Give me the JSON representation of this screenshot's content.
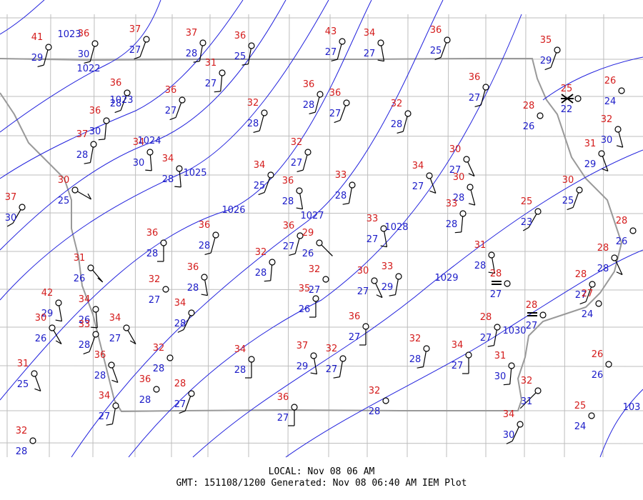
{
  "stations": [
    {
      "temp": 41,
      "dew": 29
    },
    {
      "temp": 36,
      "dew": 30
    },
    {
      "temp": 37,
      "dew": 27
    },
    {
      "temp": 37,
      "dew": 28
    },
    {
      "temp": 36,
      "dew": 25
    },
    {
      "temp": 43,
      "dew": 27
    },
    {
      "temp": 34,
      "dew": 27
    },
    {
      "temp": 36,
      "dew": 25
    },
    {
      "temp": 35,
      "dew": 29
    },
    {
      "temp": 31,
      "dew": 27
    },
    {
      "temp": 36,
      "dew": 28
    },
    {
      "temp": 36,
      "dew": 27
    },
    {
      "temp": 36,
      "dew": 28
    },
    {
      "temp": 36,
      "dew": 27
    },
    {
      "temp": 32,
      "dew": 28
    },
    {
      "temp": 32,
      "dew": 28
    },
    {
      "temp": 36,
      "dew": 27
    },
    {
      "temp": 28,
      "dew": 26
    },
    {
      "temp": 25,
      "dew": 22
    },
    {
      "temp": 26,
      "dew": 24
    },
    {
      "temp": 36,
      "dew": 30
    },
    {
      "temp": 37,
      "dew": 28
    },
    {
      "temp": 34,
      "dew": 30
    },
    {
      "temp": 34,
      "dew": 28
    },
    {
      "temp": 32,
      "dew": 27
    },
    {
      "temp": 34,
      "dew": 25
    },
    {
      "temp": 36,
      "dew": 28
    },
    {
      "temp": 33,
      "dew": 28
    },
    {
      "temp": 34,
      "dew": 27
    },
    {
      "temp": 30,
      "dew": 27
    },
    {
      "temp": 30,
      "dew": 28
    },
    {
      "temp": 33,
      "dew": 28
    },
    {
      "temp": 25,
      "dew": 23
    },
    {
      "temp": 30,
      "dew": 25
    },
    {
      "temp": 31,
      "dew": 29
    },
    {
      "temp": 32,
      "dew": 30
    },
    {
      "temp": 30,
      "dew": 25
    },
    {
      "temp": 37,
      "dew": 30
    },
    {
      "temp": 36,
      "dew": 28
    },
    {
      "temp": 36,
      "dew": 28
    },
    {
      "temp": 36,
      "dew": 27
    },
    {
      "temp": 29,
      "dew": 26
    },
    {
      "temp": 33,
      "dew": 27
    },
    {
      "temp": 32,
      "dew": 28
    },
    {
      "temp": 36,
      "dew": 28
    },
    {
      "temp": 32,
      "dew": 27
    },
    {
      "temp": 31,
      "dew": 26
    },
    {
      "temp": 32,
      "dew": 27
    },
    {
      "temp": 35,
      "dew": 26
    },
    {
      "temp": 30,
      "dew": 27
    },
    {
      "temp": 33,
      "dew": 29
    },
    {
      "temp": 31,
      "dew": 28
    },
    {
      "temp": 28,
      "dew": 27
    },
    {
      "temp": 28,
      "dew": 27
    },
    {
      "temp": 28,
      "dew": 26
    },
    {
      "temp": 28,
      "dew": 28
    },
    {
      "temp": 28,
      "dew": 27
    },
    {
      "temp": 27,
      "dew": 24
    },
    {
      "temp": 42,
      "dew": 29
    },
    {
      "temp": 34,
      "dew": 26
    },
    {
      "temp": 33,
      "dew": 28
    },
    {
      "temp": 34,
      "dew": 27
    },
    {
      "temp": 30,
      "dew": 26
    },
    {
      "temp": 34,
      "dew": 28
    },
    {
      "temp": 36,
      "dew": 27
    },
    {
      "temp": 28,
      "dew": 27
    },
    {
      "temp": 32,
      "dew": 28
    },
    {
      "temp": 36,
      "dew": 28
    },
    {
      "temp": 34,
      "dew": 28
    },
    {
      "temp": 37,
      "dew": 29
    },
    {
      "temp": 32,
      "dew": 27
    },
    {
      "temp": 32,
      "dew": 28
    },
    {
      "temp": 34,
      "dew": 27
    },
    {
      "temp": 31,
      "dew": 30
    },
    {
      "temp": 31,
      "dew": 25
    },
    {
      "temp": 36,
      "dew": 28
    },
    {
      "temp": 28,
      "dew": 27
    },
    {
      "temp": 32,
      "dew": 28
    },
    {
      "temp": 36,
      "dew": 27
    },
    {
      "temp": 32,
      "dew": 31
    },
    {
      "temp": 26,
      "dew": 26
    },
    {
      "temp": 34,
      "dew": 27
    },
    {
      "temp": 34,
      "dew": 30
    },
    {
      "temp": 25,
      "dew": 24
    },
    {
      "temp": 32,
      "dew": 28
    }
  ],
  "isobars": [
    "1023",
    "1022",
    "1023",
    "1024",
    "1025",
    "1026",
    "1027",
    "1028",
    "1029",
    "1030",
    "103"
  ],
  "footer": {
    "local": "LOCAL: Nov 08 06 AM",
    "gmt": "GMT: 151108/1200 Generated: Nov 08 06:40 AM IEM Plot"
  }
}
